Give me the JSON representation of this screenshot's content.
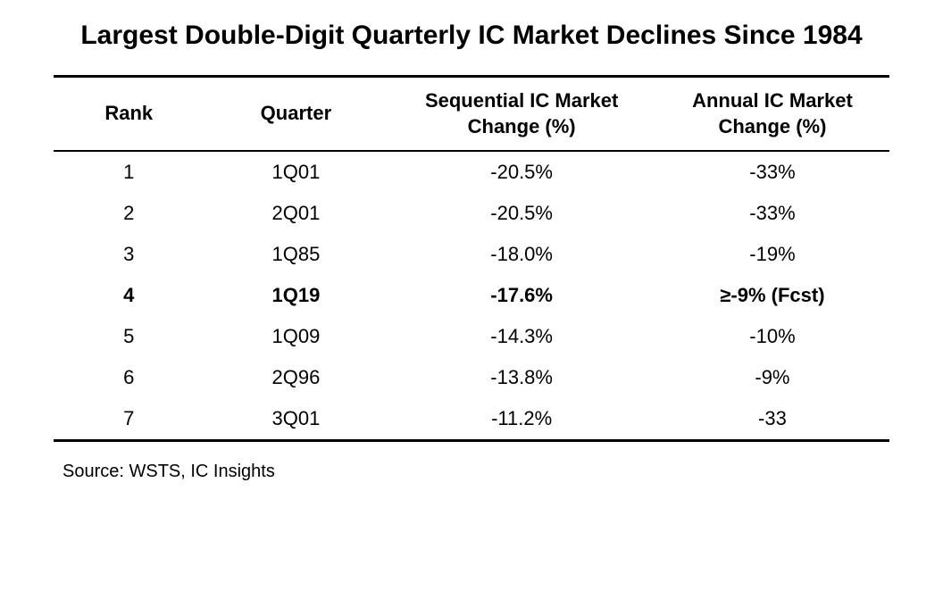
{
  "table": {
    "type": "table",
    "title": "Largest Double-Digit Quarterly IC Market Declines Since 1984",
    "columns": [
      {
        "label": "Rank",
        "width_pct": 18,
        "align": "center"
      },
      {
        "label": "Quarter",
        "width_pct": 22,
        "align": "center"
      },
      {
        "label": "Sequential IC Market Change (%)",
        "width_pct": 32,
        "align": "center"
      },
      {
        "label": "Annual IC Market Change (%)",
        "width_pct": 28,
        "align": "center"
      }
    ],
    "rows": [
      {
        "rank": "1",
        "quarter": "1Q01",
        "seq": "-20.5%",
        "annual": "-33%",
        "bold": false
      },
      {
        "rank": "2",
        "quarter": "2Q01",
        "seq": "-20.5%",
        "annual": "-33%",
        "bold": false
      },
      {
        "rank": "3",
        "quarter": "1Q85",
        "seq": "-18.0%",
        "annual": "-19%",
        "bold": false
      },
      {
        "rank": "4",
        "quarter": "1Q19",
        "seq": "-17.6%",
        "annual": "≥-9% (Fcst)",
        "bold": true
      },
      {
        "rank": "5",
        "quarter": "1Q09",
        "seq": "-14.3%",
        "annual": "-10%",
        "bold": false
      },
      {
        "rank": "6",
        "quarter": "2Q96",
        "seq": "-13.8%",
        "annual": "-9%",
        "bold": false
      },
      {
        "rank": "7",
        "quarter": "3Q01",
        "seq": "-11.2%",
        "annual": "-33",
        "bold": false
      }
    ],
    "source": "Source: WSTS, IC Insights",
    "style": {
      "title_fontsize": 30,
      "title_fontweight": "bold",
      "header_fontsize": 22,
      "header_fontweight": "bold",
      "cell_fontsize": 22,
      "source_fontsize": 20,
      "text_color": "#000000",
      "background_color": "#ffffff",
      "border_color": "#000000",
      "top_border_width": 3,
      "header_bottom_border_width": 2,
      "bottom_border_width": 3
    }
  }
}
